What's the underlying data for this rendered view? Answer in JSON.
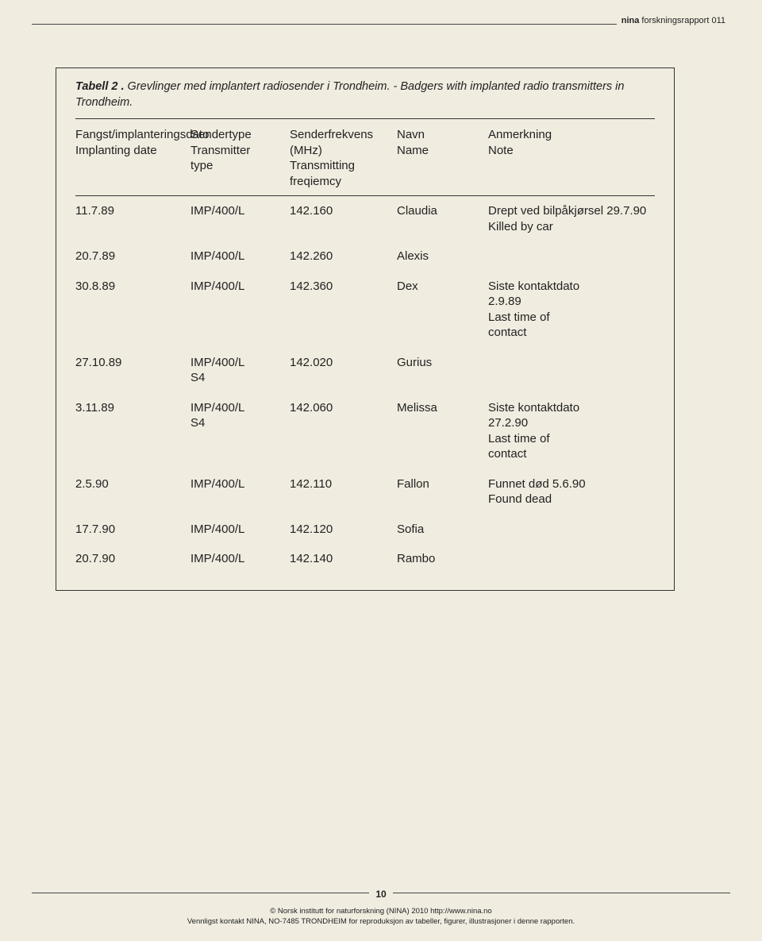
{
  "topLabelBold": "nina",
  "topLabelRest": "forskningsrapport 011",
  "caption": {
    "lead": "Tabell 2 .",
    "rest": " Grevlinger med implantert radiosender i Trondheim. - Badgers with implanted radio transmitters in Trondheim."
  },
  "headers": {
    "c1": "Fangst/implanteringsdato\nImplanting date",
    "c2": "Sendertype\nTransmitter\ntype",
    "c3": "Senderfrekvens\n(MHz)\nTransmitting\nfreqiemcy",
    "c4": "Navn\nName",
    "c5": "Anmerkning\nNote"
  },
  "rows": [
    {
      "c1": "11.7.89",
      "c2": "IMP/400/L",
      "c3": "142.160",
      "c4": "Claudia",
      "c5": "Drept ved bilpåkjørsel 29.7.90\nKilled by car"
    },
    {
      "c1": "20.7.89",
      "c2": "IMP/400/L",
      "c3": "142.260",
      "c4": "Alexis",
      "c5": ""
    },
    {
      "c1": "30.8.89",
      "c2": "IMP/400/L",
      "c3": "142.360",
      "c4": "Dex",
      "c5": "Siste kontaktdato\n2.9.89\nLast time of\ncontact"
    },
    {
      "c1": "27.10.89",
      "c2": "IMP/400/L\nS4",
      "c3": "142.020",
      "c4": "Gurius",
      "c5": ""
    },
    {
      "c1": "3.11.89",
      "c2": "IMP/400/L\nS4",
      "c3": "142.060",
      "c4": "Melissa",
      "c5": "Siste kontaktdato\n27.2.90\nLast time of\ncontact"
    },
    {
      "c1": "2.5.90",
      "c2": "IMP/400/L",
      "c3": "142.110",
      "c4": "Fallon",
      "c5": "Funnet død 5.6.90\nFound dead"
    },
    {
      "c1": "17.7.90",
      "c2": "IMP/400/L",
      "c3": "142.120",
      "c4": "Sofia",
      "c5": ""
    },
    {
      "c1": "20.7.90",
      "c2": "IMP/400/L",
      "c3": "142.140",
      "c4": "Rambo",
      "c5": ""
    }
  ],
  "pageNumber": "10",
  "footer1": "© Norsk institutt for naturforskning (NINA) 2010 http://www.nina.no",
  "footer2": "Vennligst kontakt NINA, NO-7485 TRONDHEIM for reproduksjon av tabeller, figurer, illustrasjoner i denne rapporten."
}
